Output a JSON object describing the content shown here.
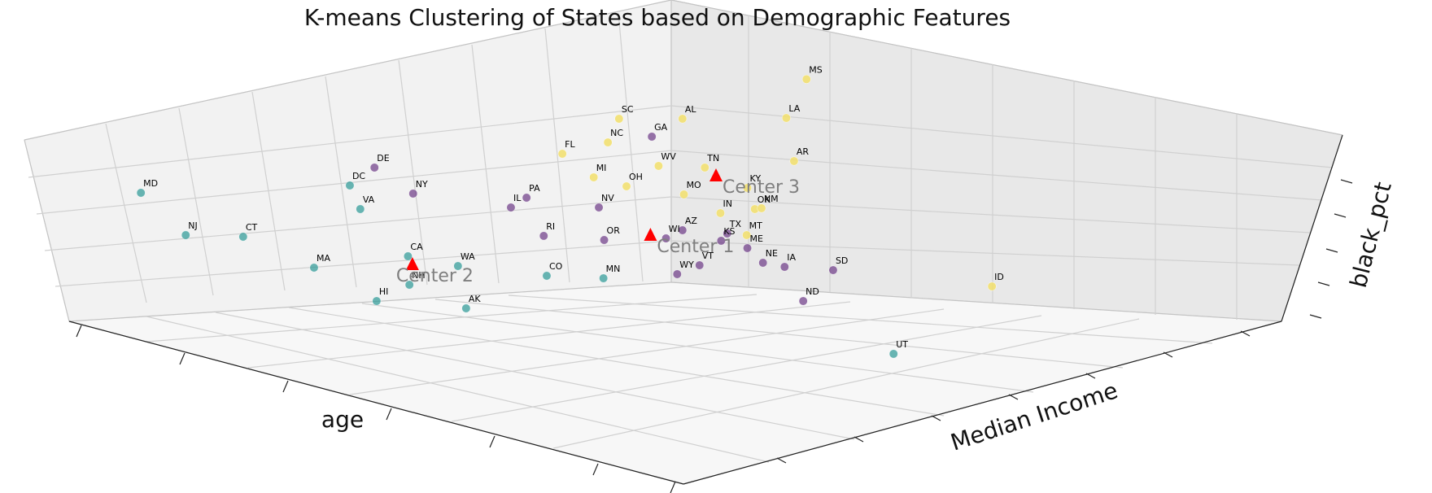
{
  "colors": {
    "cluster_0": "#6f3d88",
    "cluster_1": "#2f9a97",
    "cluster_2": "#f2df6b",
    "center": "#ff0000"
  },
  "chart_data": {
    "type": "scatter",
    "title": "K-means Clustering of States based on Demographic Features",
    "xlabel": "age",
    "ylabel": "Median Income",
    "zlabel": "black_pct",
    "grid": true,
    "legend": "none",
    "points": [
      {
        "label": "MS",
        "cluster": 2,
        "pos": [
          0.5632,
          0.1607
        ]
      },
      {
        "label": "AL",
        "cluster": 2,
        "pos": [
          0.4766,
          0.2409
        ]
      },
      {
        "label": "LA",
        "cluster": 2,
        "pos": [
          0.5491,
          0.2393
        ]
      },
      {
        "label": "SC",
        "cluster": 2,
        "pos": [
          0.4323,
          0.2409
        ]
      },
      {
        "label": "GA",
        "cluster": 0,
        "pos": [
          0.4552,
          0.2772
        ]
      },
      {
        "label": "NC",
        "cluster": 2,
        "pos": [
          0.4245,
          0.2888
        ]
      },
      {
        "label": "FL",
        "cluster": 2,
        "pos": [
          0.3927,
          0.3119
        ]
      },
      {
        "label": "AR",
        "cluster": 2,
        "pos": [
          0.5545,
          0.3267
        ]
      },
      {
        "label": "TN",
        "cluster": 2,
        "pos": [
          0.4922,
          0.3399
        ]
      },
      {
        "label": "WV",
        "cluster": 2,
        "pos": [
          0.4599,
          0.3366
        ]
      },
      {
        "label": "DE",
        "cluster": 0,
        "pos": [
          0.2615,
          0.3399
        ]
      },
      {
        "label": "MI",
        "cluster": 2,
        "pos": [
          0.4146,
          0.3597
        ]
      },
      {
        "label": "OH",
        "cluster": 2,
        "pos": [
          0.4375,
          0.3779
        ]
      },
      {
        "label": "KY",
        "cluster": 2,
        "pos": [
          0.5219,
          0.3812
        ]
      },
      {
        "label": "MD",
        "cluster": 1,
        "pos": [
          0.0984,
          0.3911
        ]
      },
      {
        "label": "DC",
        "cluster": 1,
        "pos": [
          0.2443,
          0.3762
        ]
      },
      {
        "label": "NY",
        "cluster": 0,
        "pos": [
          0.2885,
          0.3927
        ]
      },
      {
        "label": "MO",
        "cluster": 2,
        "pos": [
          0.4776,
          0.3944
        ]
      },
      {
        "label": "PA",
        "cluster": 0,
        "pos": [
          0.3677,
          0.401
        ]
      },
      {
        "label": "OK",
        "cluster": 2,
        "pos": [
          0.5271,
          0.4241
        ]
      },
      {
        "label": "NM",
        "cluster": 2,
        "pos": [
          0.5318,
          0.4224
        ]
      },
      {
        "label": "NV",
        "cluster": 0,
        "pos": [
          0.4182,
          0.4208
        ]
      },
      {
        "label": "IL",
        "cluster": 0,
        "pos": [
          0.3568,
          0.4208
        ]
      },
      {
        "label": "VA",
        "cluster": 1,
        "pos": [
          0.2516,
          0.4241
        ]
      },
      {
        "label": "IN",
        "cluster": 2,
        "pos": [
          0.5031,
          0.4323
        ]
      },
      {
        "label": "AZ",
        "cluster": 0,
        "pos": [
          0.4766,
          0.467
        ]
      },
      {
        "label": "NJ",
        "cluster": 1,
        "pos": [
          0.1297,
          0.4769
        ]
      },
      {
        "label": "CT",
        "cluster": 1,
        "pos": [
          0.1698,
          0.4802
        ]
      },
      {
        "label": "RI",
        "cluster": 0,
        "pos": [
          0.3797,
          0.4785
        ]
      },
      {
        "label": "TX",
        "cluster": 0,
        "pos": [
          0.5078,
          0.4736
        ]
      },
      {
        "label": "MT",
        "cluster": 2,
        "pos": [
          0.5214,
          0.4769
        ]
      },
      {
        "label": "WI",
        "cluster": 0,
        "pos": [
          0.4651,
          0.4835
        ]
      },
      {
        "label": "KS",
        "cluster": 0,
        "pos": [
          0.5036,
          0.4884
        ]
      },
      {
        "label": "OR",
        "cluster": 0,
        "pos": [
          0.4219,
          0.4868
        ]
      },
      {
        "label": "ME",
        "cluster": 0,
        "pos": [
          0.5219,
          0.5033
        ]
      },
      {
        "label": "CA",
        "cluster": 1,
        "pos": [
          0.2849,
          0.5198
        ]
      },
      {
        "label": "WA",
        "cluster": 1,
        "pos": [
          0.3198,
          0.5396
        ]
      },
      {
        "label": "MA",
        "cluster": 1,
        "pos": [
          0.2193,
          0.5429
        ]
      },
      {
        "label": "NE",
        "cluster": 0,
        "pos": [
          0.5328,
          0.533
        ]
      },
      {
        "label": "IA",
        "cluster": 0,
        "pos": [
          0.5479,
          0.5413
        ]
      },
      {
        "label": "SD",
        "cluster": 0,
        "pos": [
          0.5818,
          0.5479
        ]
      },
      {
        "label": "VT",
        "cluster": 0,
        "pos": [
          0.4885,
          0.538
        ]
      },
      {
        "label": "WY",
        "cluster": 0,
        "pos": [
          0.4729,
          0.5561
        ]
      },
      {
        "label": "CO",
        "cluster": 1,
        "pos": [
          0.3818,
          0.5594
        ]
      },
      {
        "label": "MN",
        "cluster": 1,
        "pos": [
          0.4214,
          0.5644
        ]
      },
      {
        "label": "NH",
        "cluster": 1,
        "pos": [
          0.2859,
          0.5776
        ]
      },
      {
        "label": "HI",
        "cluster": 1,
        "pos": [
          0.263,
          0.6106
        ]
      },
      {
        "label": "AK",
        "cluster": 1,
        "pos": [
          0.3255,
          0.6254
        ]
      },
      {
        "label": "ND",
        "cluster": 0,
        "pos": [
          0.5609,
          0.6106
        ]
      },
      {
        "label": "ID",
        "cluster": 2,
        "pos": [
          0.6927,
          0.5809
        ]
      },
      {
        "label": "UT",
        "cluster": 1,
        "pos": [
          0.624,
          0.7178
        ]
      }
    ],
    "centers": [
      {
        "label": "Center 3",
        "pos": [
          0.5,
          0.3548
        ]
      },
      {
        "label": "Center 1",
        "pos": [
          0.4542,
          0.4752
        ]
      },
      {
        "label": "Center 2",
        "pos": [
          0.288,
          0.5347
        ]
      }
    ]
  }
}
